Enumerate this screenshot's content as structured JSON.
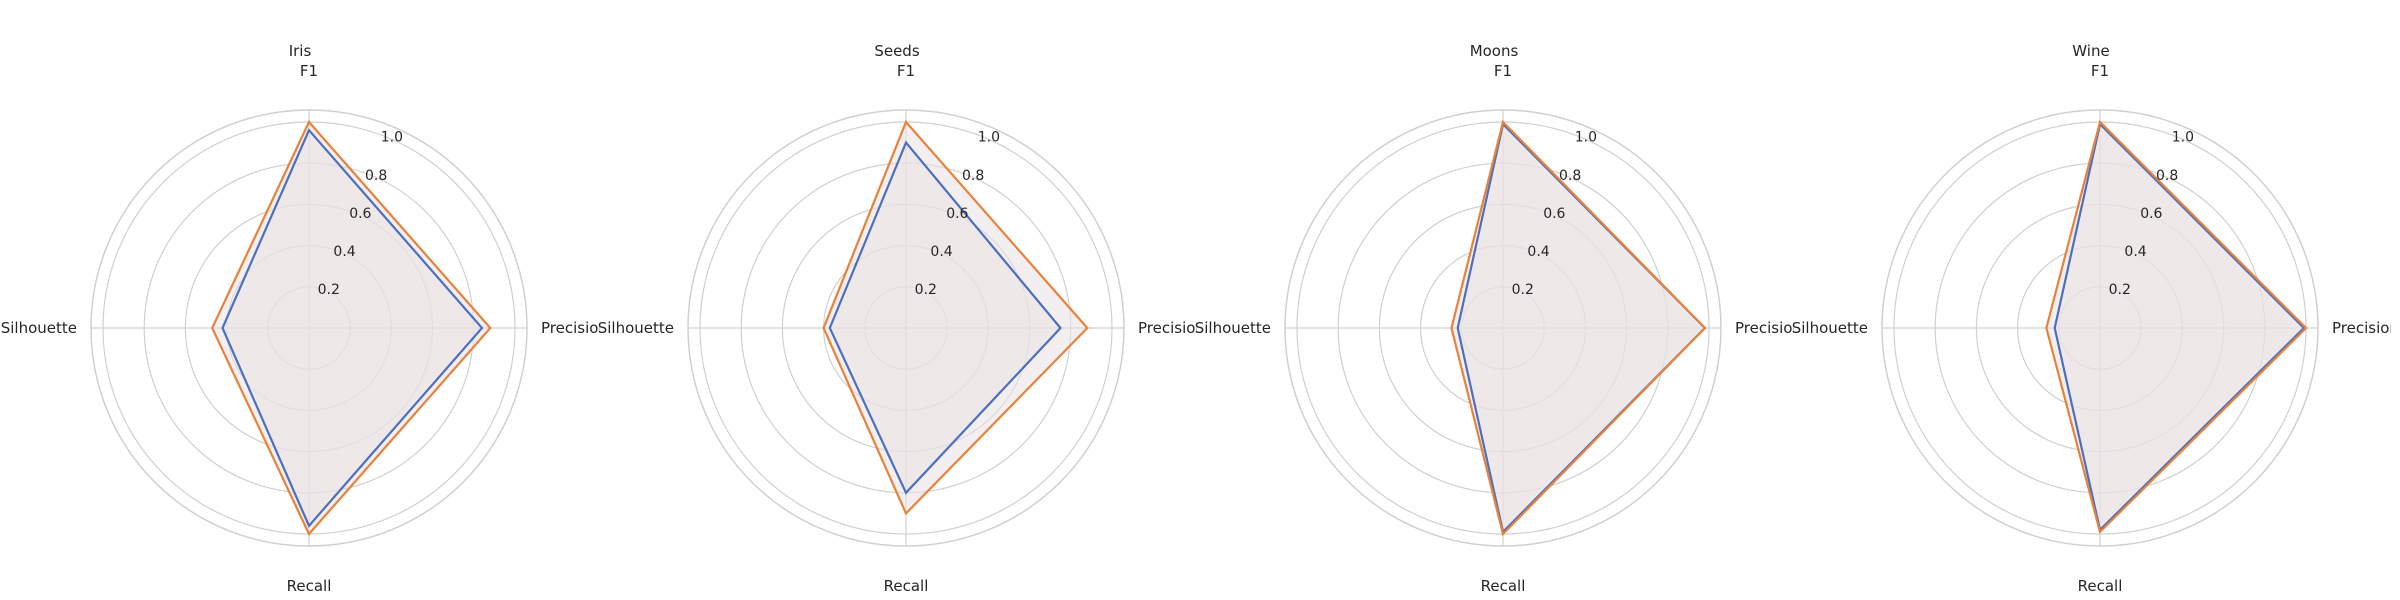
{
  "chart_data": [
    {
      "type": "radar",
      "title": "Iris",
      "axes": [
        "F1",
        "Precision",
        "Recall",
        "Silhouette"
      ],
      "rlim": [
        0,
        1.0
      ],
      "rticks": [
        "0.2",
        "0.4",
        "0.6",
        "0.8",
        "1.0"
      ],
      "series": [
        {
          "color": "#4c6fbf",
          "values": [
            0.96,
            0.84,
            0.96,
            0.42
          ]
        },
        {
          "color": "#e8823a",
          "values": [
            1.0,
            0.88,
            1.0,
            0.47
          ]
        }
      ]
    },
    {
      "type": "radar",
      "title": "Seeds",
      "axes": [
        "F1",
        "Precision",
        "Recall",
        "Silhouette"
      ],
      "rlim": [
        0,
        1.0
      ],
      "rticks": [
        "0.2",
        "0.4",
        "0.6",
        "0.8",
        "1.0"
      ],
      "series": [
        {
          "color": "#4c6fbf",
          "values": [
            0.9,
            0.75,
            0.8,
            0.37
          ]
        },
        {
          "color": "#e8823a",
          "values": [
            1.0,
            0.88,
            0.9,
            0.4
          ]
        }
      ]
    },
    {
      "type": "radar",
      "title": "Moons",
      "axes": [
        "F1",
        "Precision",
        "Recall",
        "Silhouette"
      ],
      "rlim": [
        0,
        1.0
      ],
      "rticks": [
        "0.2",
        "0.4",
        "0.6",
        "0.8",
        "1.0"
      ],
      "series": [
        {
          "color": "#4c6fbf",
          "values": [
            0.99,
            0.98,
            0.99,
            0.22
          ]
        },
        {
          "color": "#e8823a",
          "values": [
            1.0,
            0.98,
            1.0,
            0.25
          ]
        }
      ]
    },
    {
      "type": "radar",
      "title": "Wine",
      "axes": [
        "F1",
        "Precision",
        "Recall",
        "Silhouette"
      ],
      "rlim": [
        0,
        1.0
      ],
      "rticks": [
        "0.2",
        "0.4",
        "0.6",
        "0.8",
        "1.0"
      ],
      "series": [
        {
          "color": "#4c6fbf",
          "values": [
            0.99,
            0.99,
            0.98,
            0.22
          ]
        },
        {
          "color": "#e8823a",
          "values": [
            1.0,
            1.0,
            0.99,
            0.26
          ]
        }
      ]
    }
  ],
  "colors": {
    "grid": "#d0d0d0",
    "fill": "#e9e2e4",
    "text": "#262626"
  }
}
